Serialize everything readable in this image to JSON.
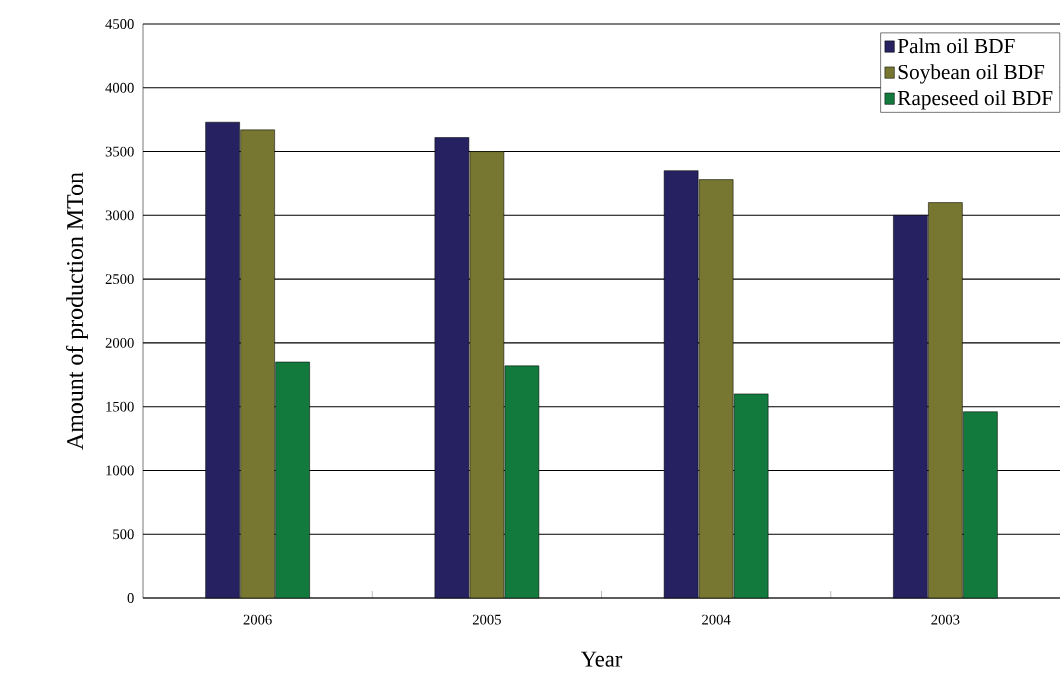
{
  "chart_data": {
    "type": "bar",
    "xlabel": "Year",
    "ylabel": "Amount of production    MTon",
    "categories": [
      "2006",
      "2005",
      "2004",
      "2003"
    ],
    "series": [
      {
        "name": "Palm oil BDF",
        "color": "#262262",
        "values": [
          3730,
          3610,
          3350,
          3000
        ]
      },
      {
        "name": "Soybean oil BDF",
        "color": "#777731",
        "values": [
          3670,
          3500,
          3280,
          3100
        ]
      },
      {
        "name": "Rapeseed oil BDF",
        "color": "#137a3d",
        "values": [
          1850,
          1820,
          1600,
          1460
        ]
      }
    ],
    "ylim": [
      0,
      4500
    ],
    "yticks": [
      0,
      500,
      1000,
      1500,
      2000,
      2500,
      3000,
      3500,
      4000,
      4500
    ],
    "grid": "y",
    "legend": "top right"
  }
}
